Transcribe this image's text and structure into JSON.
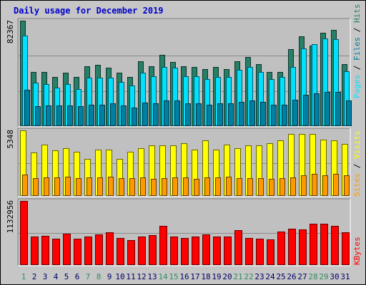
{
  "title": "Daily usage for December 2019",
  "colors": {
    "hits": "#267f67",
    "files": "#00e0ff",
    "pages": "#007fa0",
    "visits": "#ffff00",
    "sites": "#ff9900",
    "kbytes": "#ff0000",
    "weekend_label": "#2f8f5f",
    "weekday_label": "#000066"
  },
  "chart_data": [
    {
      "type": "bar",
      "title": "Daily usage for December 2019",
      "categories": [
        "1",
        "2",
        "3",
        "4",
        "5",
        "6",
        "7",
        "8",
        "9",
        "10",
        "11",
        "12",
        "13",
        "14",
        "15",
        "16",
        "17",
        "18",
        "19",
        "20",
        "21",
        "22",
        "23",
        "24",
        "25",
        "26",
        "27",
        "28",
        "29",
        "30",
        "31"
      ],
      "weekend_days": [
        "1",
        "7",
        "8",
        "14",
        "15",
        "21",
        "22",
        "28",
        "29"
      ],
      "ymax_label": "82367",
      "ylim": [
        0,
        82367
      ],
      "right_label": [
        "Pages",
        "Files",
        "Hits"
      ],
      "series": [
        {
          "name": "Hits",
          "values": [
            82367,
            42300,
            42300,
            38500,
            41600,
            38500,
            46900,
            47700,
            45400,
            41600,
            38500,
            50800,
            46900,
            55400,
            50000,
            46900,
            46200,
            44600,
            46200,
            44600,
            50800,
            53900,
            48500,
            42300,
            42300,
            60000,
            70000,
            63100,
            73100,
            75400,
            48500
          ]
        },
        {
          "name": "Files",
          "values": [
            70800,
            33900,
            33000,
            30000,
            33000,
            29200,
            37600,
            37600,
            37700,
            34600,
            31600,
            41600,
            39200,
            46200,
            45400,
            39200,
            39200,
            36900,
            38500,
            38500,
            43900,
            46200,
            42300,
            36900,
            38500,
            46200,
            60800,
            63900,
            68500,
            67700,
            43100
          ]
        },
        {
          "name": "Pages",
          "values": [
            28500,
            15400,
            16200,
            16200,
            16200,
            15400,
            16900,
            16900,
            17700,
            16200,
            14600,
            18500,
            17700,
            20000,
            20000,
            17700,
            17700,
            16900,
            17700,
            17700,
            19200,
            20000,
            19200,
            16900,
            16900,
            20800,
            24600,
            25400,
            26900,
            26900,
            20000
          ]
        }
      ]
    },
    {
      "type": "bar",
      "categories": [
        "1",
        "2",
        "3",
        "4",
        "5",
        "6",
        "7",
        "8",
        "9",
        "10",
        "11",
        "12",
        "13",
        "14",
        "15",
        "16",
        "17",
        "18",
        "19",
        "20",
        "21",
        "22",
        "23",
        "24",
        "25",
        "26",
        "27",
        "28",
        "29",
        "30",
        "31"
      ],
      "ymax_label": "5348",
      "ylim": [
        0,
        5348
      ],
      "right_label": [
        "Sites",
        "Visits"
      ],
      "series": [
        {
          "name": "Visits",
          "values": [
            5348,
            3560,
            4200,
            3720,
            3900,
            3620,
            3000,
            3780,
            3780,
            3000,
            3620,
            3900,
            4120,
            4120,
            4120,
            4280,
            3780,
            4560,
            3780,
            4200,
            3900,
            4120,
            4120,
            4280,
            4560,
            5060,
            5060,
            5060,
            4580,
            4560,
            4270
          ]
        },
        {
          "name": "Sites",
          "values": [
            1720,
            1440,
            1500,
            1530,
            1580,
            1440,
            1500,
            1530,
            1580,
            1470,
            1440,
            1500,
            1400,
            1440,
            1500,
            1500,
            1390,
            1530,
            1500,
            1560,
            1440,
            1470,
            1470,
            1400,
            1470,
            1500,
            1700,
            1810,
            1700,
            1780,
            1660
          ]
        }
      ]
    },
    {
      "type": "bar",
      "categories": [
        "1",
        "2",
        "3",
        "4",
        "5",
        "6",
        "7",
        "8",
        "9",
        "10",
        "11",
        "12",
        "13",
        "14",
        "15",
        "16",
        "17",
        "18",
        "19",
        "20",
        "21",
        "22",
        "23",
        "24",
        "25",
        "26",
        "27",
        "28",
        "29",
        "30",
        "31"
      ],
      "ymax_label": "1132956",
      "ylim": [
        0,
        1132956
      ],
      "right_label": [
        "KBytes"
      ],
      "series": [
        {
          "name": "KBytes",
          "values": [
            1132956,
            498000,
            518000,
            460000,
            553000,
            462000,
            505000,
            538000,
            576000,
            482000,
            436000,
            505000,
            534000,
            691000,
            498000,
            476000,
            500000,
            545000,
            500000,
            500000,
            613000,
            482000,
            460000,
            450000,
            590000,
            645000,
            629000,
            732000,
            735000,
            687000,
            574000
          ]
        }
      ]
    }
  ]
}
